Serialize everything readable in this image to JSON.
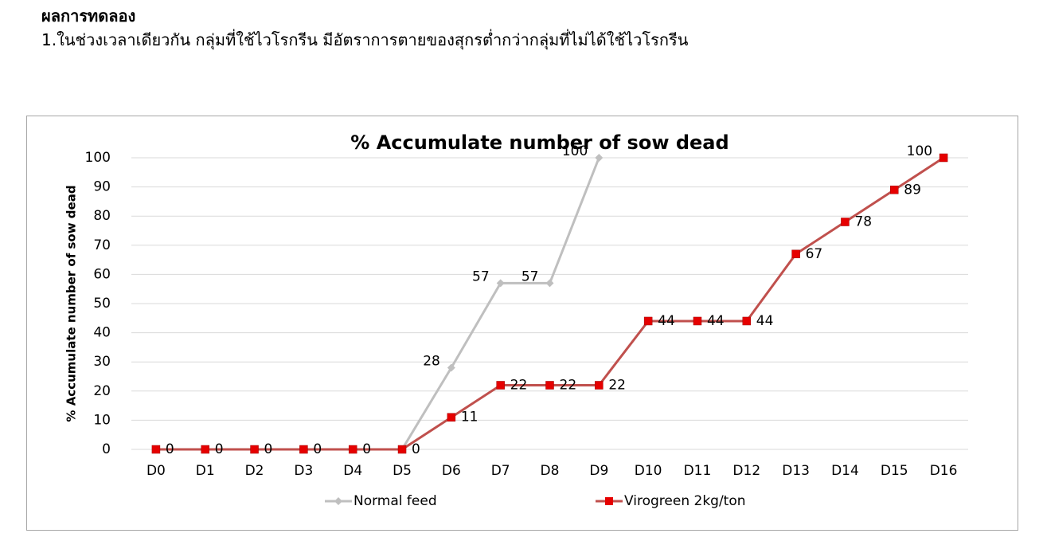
{
  "heading": "ผลการทดลอง",
  "paragraph": "1.ในช่วงเวลาเดียวกัน กลุ่มที่ใช้ไวโรกรีน มีอัตราการตายของสุกรต่ำกว่ากลุ่มที่ไม่ได้ใช้ไวโรกรีน",
  "chart_data": {
    "type": "line",
    "title": "% Accumulate number of sow dead",
    "y_label": "% Accumulate number of sow dead",
    "categories": [
      "D0",
      "D1",
      "D2",
      "D3",
      "D4",
      "D5",
      "D6",
      "D7",
      "D8",
      "D9",
      "D10",
      "D11",
      "D12",
      "D13",
      "D14",
      "D15",
      "D16"
    ],
    "series": [
      {
        "name": "Normal feed",
        "color": "#bfbfbf",
        "marker": "diamond",
        "values": [
          0,
          0,
          0,
          0,
          0,
          0,
          28,
          57,
          57,
          100,
          null,
          null,
          null,
          null,
          null,
          null,
          null
        ],
        "value_labels": [
          null,
          null,
          null,
          null,
          null,
          null,
          "28",
          "57",
          "57",
          "100",
          null,
          null,
          null,
          null,
          null,
          null,
          null
        ]
      },
      {
        "name": "Virogreen 2kg/ton",
        "color": "#c0504d",
        "marker_color": "#e60000",
        "marker": "square",
        "values": [
          0,
          0,
          0,
          0,
          0,
          0,
          11,
          22,
          22,
          22,
          44,
          44,
          44,
          67,
          78,
          89,
          100
        ],
        "value_labels": [
          "0",
          "0",
          "0",
          "0",
          "0",
          "0",
          "11",
          "22",
          "22",
          "22",
          "44",
          "44",
          "44",
          "67",
          "78",
          "89",
          "100"
        ]
      }
    ],
    "ylim": [
      0,
      100
    ],
    "yticks": [
      0,
      10,
      20,
      30,
      40,
      50,
      60,
      70,
      80,
      90,
      100
    ],
    "grid": true,
    "legend": "bottom"
  }
}
